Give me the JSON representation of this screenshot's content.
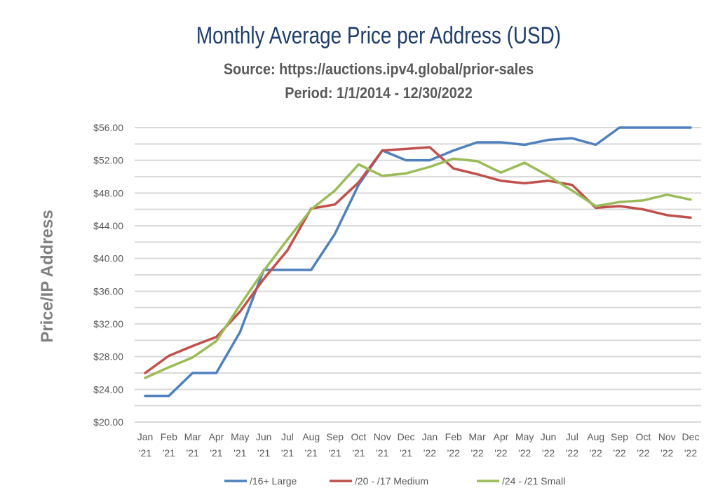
{
  "chart_data": {
    "type": "line",
    "title": "Monthly Average Price per Address (USD)",
    "subtitle_source": "Source: https://auctions.ipv4.global/prior-sales",
    "subtitle_period": "Period: 1/1/2014 - 12/30/2022",
    "xlabel": "",
    "ylabel": "Price/IP Address",
    "ylim": [
      20,
      56
    ],
    "y_ticks": [
      "$20.00",
      "$24.00",
      "$28.00",
      "$32.00",
      "$36.00",
      "$40.00",
      "$44.00",
      "$48.00",
      "$52.00",
      "$56.00"
    ],
    "grid": true,
    "legend": "bottom",
    "categories": [
      [
        "Jan",
        "'21"
      ],
      [
        "Feb",
        "'21"
      ],
      [
        "Mar",
        "'21"
      ],
      [
        "Apr",
        "'21"
      ],
      [
        "May",
        "'21"
      ],
      [
        "Jun",
        "'21"
      ],
      [
        "Jul",
        "'21"
      ],
      [
        "Aug",
        "'21"
      ],
      [
        "Sep",
        "'21"
      ],
      [
        "Oct",
        "'21"
      ],
      [
        "Nov",
        "'21"
      ],
      [
        "Dec",
        "'21"
      ],
      [
        "Jan",
        "'22"
      ],
      [
        "Feb",
        "'22"
      ],
      [
        "Mar",
        "'22"
      ],
      [
        "Apr",
        "'22"
      ],
      [
        "May",
        "'22"
      ],
      [
        "Jun",
        "'22"
      ],
      [
        "Jul",
        "'22"
      ],
      [
        "Aug",
        "'22"
      ],
      [
        "Sep",
        "'22"
      ],
      [
        "Oct",
        "'22"
      ],
      [
        "Nov",
        "'22"
      ],
      [
        "Dec",
        "'22"
      ]
    ],
    "series": [
      {
        "name": "/16+ Large",
        "color": "#4f81bd",
        "values": [
          23.2,
          23.2,
          26,
          26,
          31,
          38.6,
          38.6,
          38.6,
          43,
          49,
          53.2,
          52,
          52,
          53.2,
          54.2,
          54.2,
          53.9,
          54.5,
          54.7,
          53.9,
          56,
          56,
          56,
          56
        ]
      },
      {
        "name": "/20 - /17 Medium",
        "color": "#c0504d",
        "values": [
          26,
          28.1,
          29.3,
          30.4,
          33.5,
          37.5,
          41,
          46.1,
          46.6,
          49.3,
          53.2,
          53.4,
          53.6,
          51,
          50.3,
          49.5,
          49.2,
          49.5,
          49,
          46.2,
          46.4,
          46,
          45.3,
          45
        ]
      },
      {
        "name": "/24 - /21 Small",
        "color": "#9bbb59",
        "values": [
          25.4,
          26.7,
          27.9,
          29.9,
          34.3,
          38.5,
          42.3,
          46,
          48.3,
          51.5,
          50.1,
          50.4,
          51.2,
          52.2,
          51.9,
          50.5,
          51.7,
          50.1,
          48.3,
          46.4,
          46.9,
          47.1,
          47.8,
          47.2
        ]
      }
    ]
  }
}
